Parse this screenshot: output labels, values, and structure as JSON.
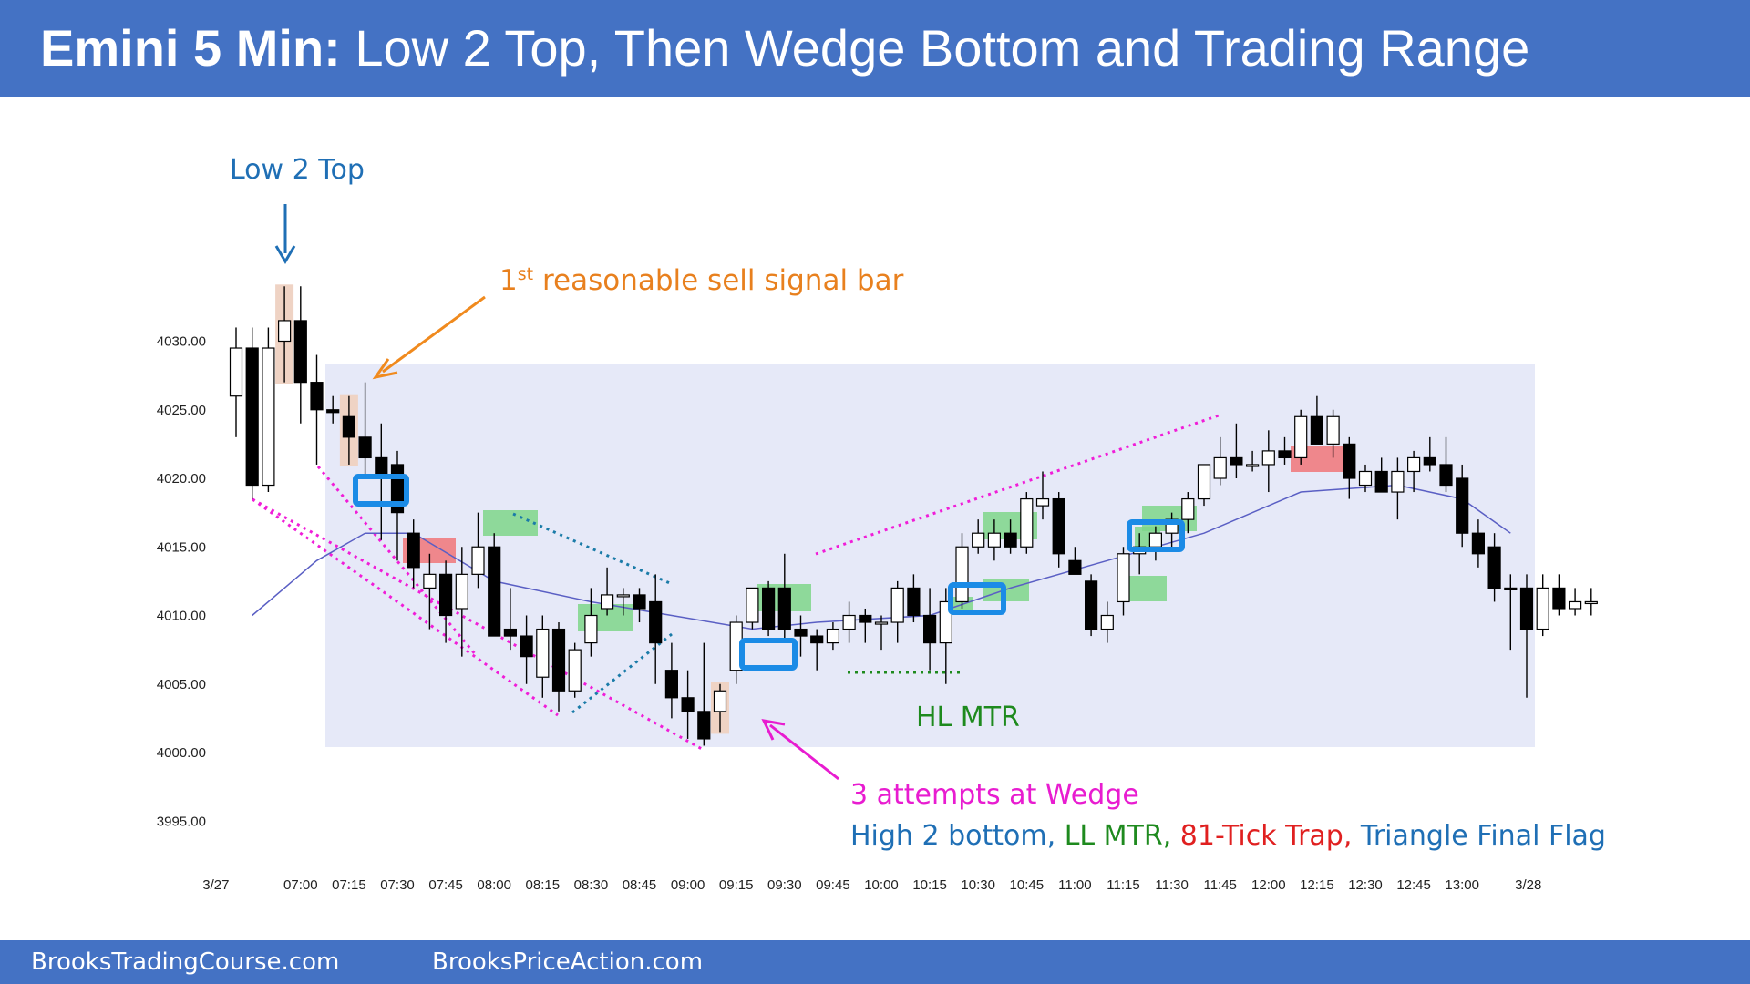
{
  "header": {
    "title_bold": "Emini 5 Min:",
    "title_rest": "Low 2 Top, Then Wedge Bottom and Trading Range"
  },
  "footer": {
    "link_1": "BrooksTradingCourse.com",
    "link_2": "BrooksPriceAction.com"
  },
  "colors": {
    "header_bg": "#4472C4",
    "range_box": "#E6E9F8",
    "ema": "#5A5FC4",
    "bull_signal": "#7ED68A",
    "bear_signal": "#F07C80",
    "signal_bar_tint": "#EFD3C4",
    "entry_box": "#1B8BE6",
    "wedge_line": "#F01DD8",
    "triangle_line": "#1A7BA8",
    "hl_line": "#1E8A1E",
    "annotation_blue": "#1F6FB5",
    "annotation_orange": "#E8801E",
    "annotation_green": "#1E8A1E",
    "annotation_magenta": "#E81CD0",
    "annotation_red": "#E02020"
  },
  "chart_data": {
    "type": "candlestick",
    "title": "Emini 5 Min",
    "ylim": [
      3993,
      4034
    ],
    "y_ticks": [
      "4030.00",
      "4025.00",
      "4020.00",
      "4015.00",
      "4010.00",
      "4005.00",
      "4000.00",
      "3995.00"
    ],
    "y_tick_values": [
      4030,
      4025,
      4020,
      4015,
      4010,
      4005,
      4000,
      3995
    ],
    "x_ticks": [
      "3/27",
      "07:00",
      "07:15",
      "07:30",
      "07:45",
      "08:00",
      "08:15",
      "08:30",
      "08:45",
      "09:00",
      "09:15",
      "09:30",
      "09:45",
      "10:00",
      "10:15",
      "10:30",
      "10:45",
      "11:00",
      "11:15",
      "11:30",
      "11:45",
      "12:00",
      "12:15",
      "12:30",
      "12:45",
      "13:00",
      "3/28"
    ],
    "x_tick_bars": [
      -1.25,
      4,
      7,
      10,
      13,
      16,
      19,
      22,
      25,
      28,
      31,
      34,
      37,
      40,
      43,
      46,
      49,
      52,
      55,
      58,
      61,
      64,
      67,
      70,
      73,
      76,
      80.1
    ],
    "bars": [
      {
        "o": 4026,
        "h": 4031,
        "l": 4023,
        "c": 4029.5
      },
      {
        "o": 4029.5,
        "h": 4031,
        "l": 4018.5,
        "c": 4019.5
      },
      {
        "o": 4019.5,
        "h": 4031,
        "l": 4019,
        "c": 4029.5
      },
      {
        "o": 4030,
        "h": 4034,
        "l": 4027,
        "c": 4031.5
      },
      {
        "o": 4031.5,
        "h": 4034,
        "l": 4024,
        "c": 4027
      },
      {
        "o": 4027,
        "h": 4029,
        "l": 4021,
        "c": 4025
      },
      {
        "o": 4025,
        "h": 4026,
        "l": 4024,
        "c": 4024.8
      },
      {
        "o": 4024.5,
        "h": 4026,
        "l": 4021,
        "c": 4023
      },
      {
        "o": 4023,
        "h": 4027,
        "l": 4020,
        "c": 4021.5
      },
      {
        "o": 4021.5,
        "h": 4024,
        "l": 4015.5,
        "c": 4020
      },
      {
        "o": 4021,
        "h": 4022,
        "l": 4014,
        "c": 4017.5
      },
      {
        "o": 4016,
        "h": 4017,
        "l": 4012,
        "c": 4013.5
      },
      {
        "o": 4012,
        "h": 4014.5,
        "l": 4009,
        "c": 4013
      },
      {
        "o": 4013,
        "h": 4014,
        "l": 4008,
        "c": 4010
      },
      {
        "o": 4010.5,
        "h": 4015,
        "l": 4007,
        "c": 4013
      },
      {
        "o": 4013,
        "h": 4017.5,
        "l": 4012,
        "c": 4015
      },
      {
        "o": 4015,
        "h": 4016,
        "l": 4008.5,
        "c": 4008.5
      },
      {
        "o": 4009,
        "h": 4012,
        "l": 4007.5,
        "c": 4008.5
      },
      {
        "o": 4008.5,
        "h": 4010,
        "l": 4005,
        "c": 4007
      },
      {
        "o": 4005.5,
        "h": 4010,
        "l": 4004,
        "c": 4009
      },
      {
        "o": 4009,
        "h": 4009.5,
        "l": 4003,
        "c": 4004.5
      },
      {
        "o": 4004.5,
        "h": 4008,
        "l": 4004,
        "c": 4007.5
      },
      {
        "o": 4008,
        "h": 4012,
        "l": 4007,
        "c": 4010
      },
      {
        "o": 4010.5,
        "h": 4013.5,
        "l": 4010,
        "c": 4011.5
      },
      {
        "o": 4011.5,
        "h": 4012,
        "l": 4010,
        "c": 4011.5
      },
      {
        "o": 4011.5,
        "h": 4012,
        "l": 4009.5,
        "c": 4010.5
      },
      {
        "o": 4011,
        "h": 4013,
        "l": 4005,
        "c": 4008
      },
      {
        "o": 4006,
        "h": 4008,
        "l": 4002.5,
        "c": 4004
      },
      {
        "o": 4004,
        "h": 4006,
        "l": 4001,
        "c": 4003
      },
      {
        "o": 4003,
        "h": 4008,
        "l": 4000.5,
        "c": 4001
      },
      {
        "o": 4003,
        "h": 4005,
        "l": 4001.5,
        "c": 4004.5
      },
      {
        "o": 4006,
        "h": 4010,
        "l": 4005,
        "c": 4009.5
      },
      {
        "o": 4009.5,
        "h": 4012,
        "l": 4009,
        "c": 4012
      },
      {
        "o": 4012,
        "h": 4012.5,
        "l": 4008.5,
        "c": 4009
      },
      {
        "o": 4012,
        "h": 4014.5,
        "l": 4008,
        "c": 4009
      },
      {
        "o": 4009,
        "h": 4010,
        "l": 4007,
        "c": 4008.5
      },
      {
        "o": 4008.5,
        "h": 4009,
        "l": 4006,
        "c": 4008
      },
      {
        "o": 4008,
        "h": 4009.5,
        "l": 4007.5,
        "c": 4009
      },
      {
        "o": 4009,
        "h": 4011,
        "l": 4008,
        "c": 4010
      },
      {
        "o": 4010,
        "h": 4010.5,
        "l": 4008,
        "c": 4009.5
      },
      {
        "o": 4009.5,
        "h": 4010,
        "l": 4007.5,
        "c": 4009.5
      },
      {
        "o": 4009.5,
        "h": 4012.5,
        "l": 4008,
        "c": 4012
      },
      {
        "o": 4012,
        "h": 4013,
        "l": 4009.5,
        "c": 4010
      },
      {
        "o": 4010,
        "h": 4012,
        "l": 4006,
        "c": 4008
      },
      {
        "o": 4008,
        "h": 4012,
        "l": 4005,
        "c": 4011
      },
      {
        "o": 4011,
        "h": 4016,
        "l": 4010.5,
        "c": 4015
      },
      {
        "o": 4015,
        "h": 4017,
        "l": 4014.5,
        "c": 4016
      },
      {
        "o": 4015,
        "h": 4017,
        "l": 4014,
        "c": 4016
      },
      {
        "o": 4016,
        "h": 4017,
        "l": 4014.5,
        "c": 4015
      },
      {
        "o": 4015,
        "h": 4019,
        "l": 4014.5,
        "c": 4018.5
      },
      {
        "o": 4018,
        "h": 4020.5,
        "l": 4017,
        "c": 4018.5
      },
      {
        "o": 4018.5,
        "h": 4019,
        "l": 4013.5,
        "c": 4014.5
      },
      {
        "o": 4014,
        "h": 4015,
        "l": 4013,
        "c": 4013
      },
      {
        "o": 4012.5,
        "h": 4013,
        "l": 4008.5,
        "c": 4009
      },
      {
        "o": 4009,
        "h": 4011,
        "l": 4008,
        "c": 4010
      },
      {
        "o": 4011,
        "h": 4015,
        "l": 4010,
        "c": 4014.5
      },
      {
        "o": 4014.5,
        "h": 4016,
        "l": 4013,
        "c": 4015
      },
      {
        "o": 4015,
        "h": 4016.5,
        "l": 4014,
        "c": 4016
      },
      {
        "o": 4016,
        "h": 4017.5,
        "l": 4015,
        "c": 4017
      },
      {
        "o": 4017,
        "h": 4019,
        "l": 4016,
        "c": 4018.5
      },
      {
        "o": 4018.5,
        "h": 4021,
        "l": 4018,
        "c": 4021
      },
      {
        "o": 4020,
        "h": 4023,
        "l": 4019.5,
        "c": 4021.5
      },
      {
        "o": 4021.5,
        "h": 4024,
        "l": 4020,
        "c": 4021
      },
      {
        "o": 4021,
        "h": 4022,
        "l": 4020.5,
        "c": 4021
      },
      {
        "o": 4021,
        "h": 4023.5,
        "l": 4019,
        "c": 4022
      },
      {
        "o": 4022,
        "h": 4023,
        "l": 4021,
        "c": 4021.5
      },
      {
        "o": 4021.5,
        "h": 4025,
        "l": 4021,
        "c": 4024.5
      },
      {
        "o": 4024.5,
        "h": 4026,
        "l": 4022.5,
        "c": 4022.5
      },
      {
        "o": 4022.5,
        "h": 4025,
        "l": 4021.5,
        "c": 4024.5
      },
      {
        "o": 4022.5,
        "h": 4023,
        "l": 4018.5,
        "c": 4020
      },
      {
        "o": 4019.5,
        "h": 4021,
        "l": 4019,
        "c": 4020.5
      },
      {
        "o": 4020.5,
        "h": 4021.5,
        "l": 4019,
        "c": 4019
      },
      {
        "o": 4019,
        "h": 4021.5,
        "l": 4017,
        "c": 4020.5
      },
      {
        "o": 4020.5,
        "h": 4022,
        "l": 4019,
        "c": 4021.5
      },
      {
        "o": 4021.5,
        "h": 4023,
        "l": 4020.5,
        "c": 4021
      },
      {
        "o": 4021,
        "h": 4023,
        "l": 4019,
        "c": 4019.5
      },
      {
        "o": 4020,
        "h": 4021,
        "l": 4015,
        "c": 4016
      },
      {
        "o": 4016,
        "h": 4017,
        "l": 4013.5,
        "c": 4014.5
      },
      {
        "o": 4015,
        "h": 4016,
        "l": 4011,
        "c": 4012
      },
      {
        "o": 4012,
        "h": 4013,
        "l": 4007.5,
        "c": 4012
      },
      {
        "o": 4012,
        "h": 4013,
        "l": 4004,
        "c": 4009
      },
      {
        "o": 4009,
        "h": 4013,
        "l": 4008.5,
        "c": 4012
      },
      {
        "o": 4012,
        "h": 4013,
        "l": 4010,
        "c": 4010.5
      },
      {
        "o": 4010.5,
        "h": 4012,
        "l": 4010,
        "c": 4011
      },
      {
        "o": 4011,
        "h": 4012,
        "l": 4010,
        "c": 4011
      }
    ],
    "ema": [
      [
        1,
        4010
      ],
      [
        5,
        4014
      ],
      [
        8,
        4016
      ],
      [
        11,
        4016
      ],
      [
        16,
        4012.5
      ],
      [
        22,
        4011
      ],
      [
        27,
        4010
      ],
      [
        32,
        4009
      ],
      [
        36,
        4009.5
      ],
      [
        43,
        4010
      ],
      [
        48,
        4012
      ],
      [
        54,
        4014
      ],
      [
        60,
        4016
      ],
      [
        66,
        4019
      ],
      [
        72,
        4019.5
      ],
      [
        76,
        4018.5
      ],
      [
        79,
        4016
      ]
    ],
    "annotations": {
      "low2_top": "Low 2 Top",
      "first_reasonable": "1",
      "first_reasonable_sup": "st",
      "first_reasonable_rest": " reasonable sell signal bar",
      "hl_mtr": "HL MTR",
      "three_attempts": "3 attempts at Wedge",
      "line2_part1": "High 2 bottom, ",
      "line2_part2": "LL MTR, ",
      "line2_part3": "81-Tick Trap, ",
      "line2_part4": "Triangle Final Flag"
    }
  }
}
